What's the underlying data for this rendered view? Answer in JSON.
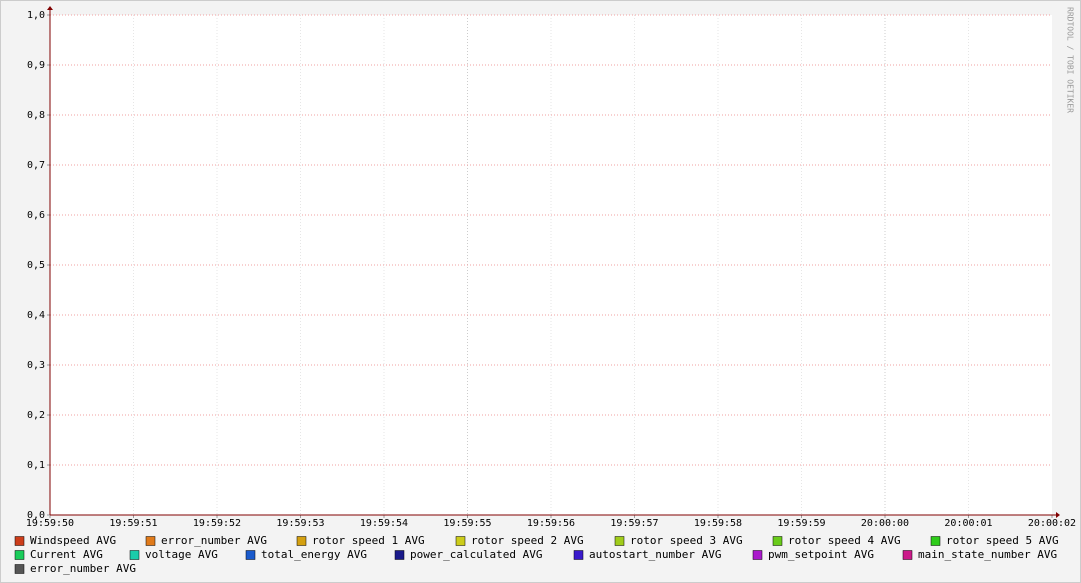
{
  "chart_data": {
    "type": "line",
    "watermark": "RRDTOOL / TOBI OETIKER",
    "categories": [
      "19:59:50",
      "19:59:51",
      "19:59:52",
      "19:59:53",
      "19:59:54",
      "19:59:55",
      "19:59:56",
      "19:59:57",
      "19:59:58",
      "19:59:59",
      "20:00:00",
      "20:00:01",
      "20:00:02"
    ],
    "series": [
      {
        "name": "Windspeed AVG",
        "color": "#cc3d1a",
        "values": [
          null,
          null,
          null,
          null,
          null,
          null,
          null,
          null,
          null,
          null,
          null,
          null,
          null
        ]
      },
      {
        "name": "error_number AVG",
        "color": "#e07a1a",
        "values": [
          null,
          null,
          null,
          null,
          null,
          null,
          null,
          null,
          null,
          null,
          null,
          null,
          null
        ]
      },
      {
        "name": "rotor speed 1 AVG",
        "color": "#d4a010",
        "values": [
          null,
          null,
          null,
          null,
          null,
          null,
          null,
          null,
          null,
          null,
          null,
          null,
          null
        ]
      },
      {
        "name": "rotor speed 2 AVG",
        "color": "#cccc1a",
        "values": [
          null,
          null,
          null,
          null,
          null,
          null,
          null,
          null,
          null,
          null,
          null,
          null,
          null
        ]
      },
      {
        "name": "rotor speed 3 AVG",
        "color": "#a0cc1a",
        "values": [
          null,
          null,
          null,
          null,
          null,
          null,
          null,
          null,
          null,
          null,
          null,
          null,
          null
        ]
      },
      {
        "name": "rotor speed 4 AVG",
        "color": "#6acc1a",
        "values": [
          null,
          null,
          null,
          null,
          null,
          null,
          null,
          null,
          null,
          null,
          null,
          null,
          null
        ]
      },
      {
        "name": "rotor speed 5 AVG",
        "color": "#2ecc1a",
        "values": [
          null,
          null,
          null,
          null,
          null,
          null,
          null,
          null,
          null,
          null,
          null,
          null,
          null
        ]
      },
      {
        "name": "Current AVG",
        "color": "#1acc5a",
        "values": [
          null,
          null,
          null,
          null,
          null,
          null,
          null,
          null,
          null,
          null,
          null,
          null,
          null
        ]
      },
      {
        "name": "voltage AVG",
        "color": "#1accaa",
        "values": [
          null,
          null,
          null,
          null,
          null,
          null,
          null,
          null,
          null,
          null,
          null,
          null,
          null
        ]
      },
      {
        "name": "total_energy AVG",
        "color": "#1a5acc",
        "values": [
          null,
          null,
          null,
          null,
          null,
          null,
          null,
          null,
          null,
          null,
          null,
          null,
          null
        ]
      },
      {
        "name": "power_calculated AVG",
        "color": "#1a1a8a",
        "values": [
          null,
          null,
          null,
          null,
          null,
          null,
          null,
          null,
          null,
          null,
          null,
          null,
          null
        ]
      },
      {
        "name": "autostart_number AVG",
        "color": "#3a1acc",
        "values": [
          null,
          null,
          null,
          null,
          null,
          null,
          null,
          null,
          null,
          null,
          null,
          null,
          null
        ]
      },
      {
        "name": "pwm_setpoint AVG",
        "color": "#aa1acc",
        "values": [
          null,
          null,
          null,
          null,
          null,
          null,
          null,
          null,
          null,
          null,
          null,
          null,
          null
        ]
      },
      {
        "name": "main_state_number AVG",
        "color": "#cc1a8a",
        "values": [
          null,
          null,
          null,
          null,
          null,
          null,
          null,
          null,
          null,
          null,
          null,
          null,
          null
        ]
      },
      {
        "name": "error_number AVG",
        "color": "#555555",
        "values": [
          null,
          null,
          null,
          null,
          null,
          null,
          null,
          null,
          null,
          null,
          null,
          null,
          null
        ]
      }
    ],
    "ylim": [
      0,
      1
    ],
    "yticks": [
      {
        "value": 0,
        "label": "0,0"
      },
      {
        "value": 0.1,
        "label": "0,1"
      },
      {
        "value": 0.2,
        "label": "0,2"
      },
      {
        "value": 0.3,
        "label": "0,3"
      },
      {
        "value": 0.4,
        "label": "0,4"
      },
      {
        "value": 0.5,
        "label": "0,5"
      },
      {
        "value": 0.6,
        "label": "0,6"
      },
      {
        "value": 0.7,
        "label": "0,7"
      },
      {
        "value": 0.8,
        "label": "0,8"
      },
      {
        "value": 0.9,
        "label": "0,9"
      },
      {
        "value": 1,
        "label": "1,0"
      }
    ],
    "grid": true
  }
}
